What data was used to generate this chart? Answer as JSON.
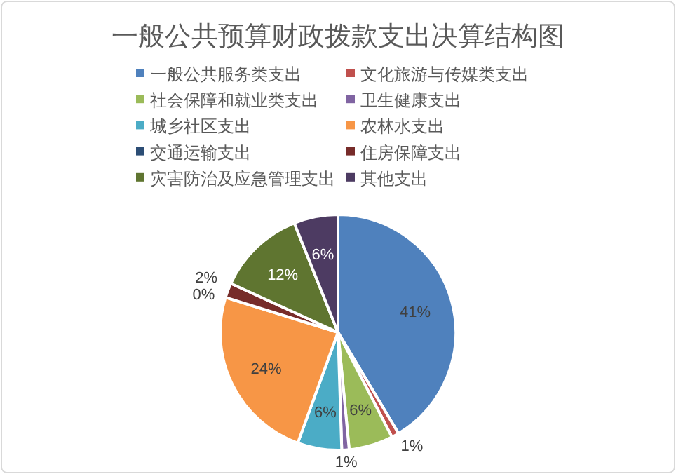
{
  "chart_data": {
    "type": "pie",
    "title": "一般公共预算财政拨款支出决算结构图",
    "categories": [
      "一般公共服务类支出",
      "文化旅游与传媒类支出",
      "社会保障和就业类支出",
      "卫生健康支出",
      "城乡社区支出",
      "农林水支出",
      "交通运输支出",
      "住房保障支出",
      "灾害防治及应急管理支出",
      "其他支出"
    ],
    "values": [
      41,
      1,
      6,
      1,
      6,
      24,
      0,
      2,
      12,
      6
    ],
    "colors": [
      "#4f81bd",
      "#c0504d",
      "#9bbb59",
      "#8064a2",
      "#4bacc6",
      "#f79646",
      "#2c4d75",
      "#772c2a",
      "#5f7530",
      "#4d3b62"
    ],
    "value_labels": [
      "41%",
      "1%",
      "6%",
      "1%",
      "6%",
      "24%",
      "0%",
      "2%",
      "12%",
      "6%"
    ],
    "legend": "top"
  }
}
